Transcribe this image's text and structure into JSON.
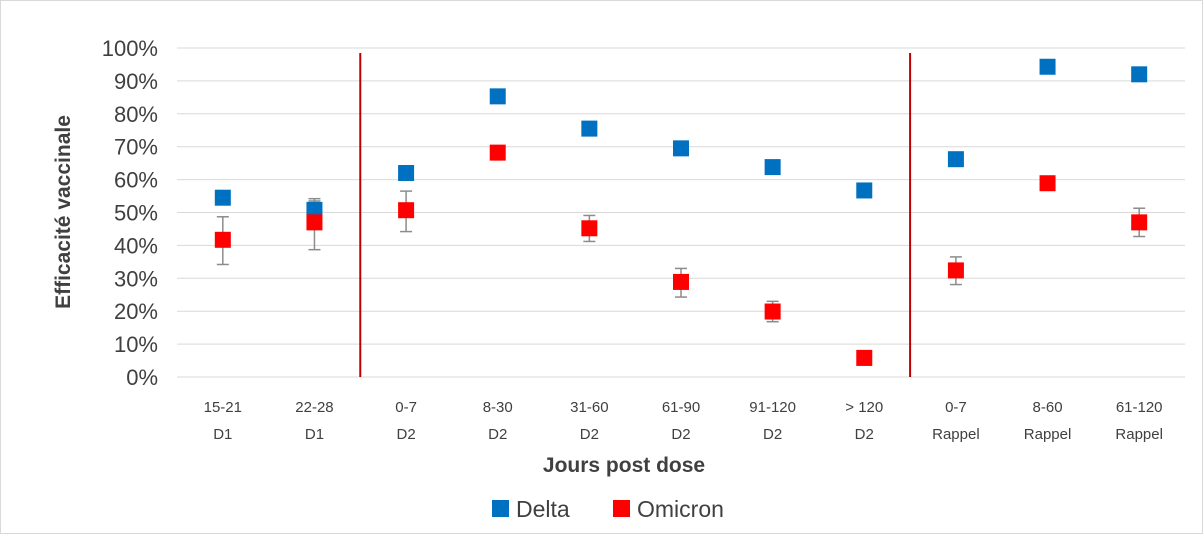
{
  "chart_data": {
    "type": "scatter",
    "ylabel": "Efficacité vaccinale",
    "xlabel": "Jours post dose",
    "ylim": [
      0,
      100
    ],
    "y_ticks": [
      "0%",
      "10%",
      "20%",
      "30%",
      "40%",
      "50%",
      "60%",
      "70%",
      "80%",
      "90%",
      "100%"
    ],
    "y_tick_values": [
      0,
      10,
      20,
      30,
      40,
      50,
      60,
      70,
      80,
      90,
      100
    ],
    "grid": true,
    "legend_position": "bottom",
    "categories": [
      {
        "line1": "15-21",
        "line2": "D1"
      },
      {
        "line1": "22-28",
        "line2": "D1"
      },
      {
        "line1": "0-7",
        "line2": "D2"
      },
      {
        "line1": "8-30",
        "line2": "D2"
      },
      {
        "line1": "31-60",
        "line2": "D2"
      },
      {
        "line1": "61-90",
        "line2": "D2"
      },
      {
        "line1": "91-120",
        "line2": "D2"
      },
      {
        "line1": "> 120",
        "line2": "D2"
      },
      {
        "line1": "0-7",
        "line2": "Rappel"
      },
      {
        "line1": "8-60",
        "line2": "Rappel"
      },
      {
        "line1": "61-120",
        "line2": "Rappel"
      }
    ],
    "separators_after_category_index": [
      1,
      7
    ],
    "separator_color": "#c00000",
    "series": [
      {
        "name": "Delta",
        "color": "#0070c0",
        "values": [
          54.5,
          50.8,
          62,
          85.3,
          75.5,
          69.5,
          63.8,
          56.7,
          66.2,
          94.3,
          92
        ],
        "error_low": [
          null,
          49.5,
          null,
          null,
          null,
          null,
          null,
          null,
          null,
          null,
          null
        ],
        "error_high": [
          null,
          53.5,
          null,
          null,
          null,
          null,
          null,
          null,
          null,
          null,
          null
        ]
      },
      {
        "name": "Omicron",
        "color": "#ff0000",
        "values": [
          41.7,
          47,
          50.7,
          68.2,
          45.2,
          28.9,
          19.9,
          5.8,
          32.4,
          58.9,
          47
        ],
        "error_low": [
          34.2,
          38.7,
          44.2,
          66.5,
          41.2,
          24.3,
          16.8,
          3.7,
          28.1,
          null,
          42.7
        ],
        "error_high": [
          48.7,
          54.2,
          56.5,
          69.3,
          49.1,
          33,
          23,
          8,
          36.5,
          null,
          51.3
        ]
      }
    ]
  }
}
